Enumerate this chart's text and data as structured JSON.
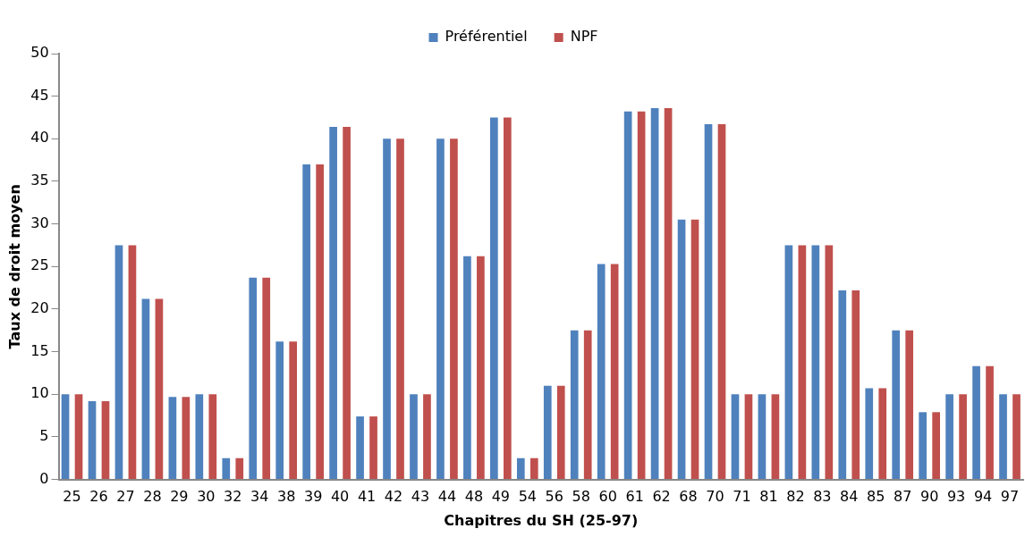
{
  "chart_data": {
    "type": "bar",
    "xlabel": "Chapitres du SH (25-97)",
    "ylabel": "Taux de droit moyen",
    "categories": [
      "25",
      "26",
      "27",
      "28",
      "29",
      "30",
      "32",
      "34",
      "38",
      "39",
      "40",
      "41",
      "42",
      "43",
      "44",
      "48",
      "49",
      "54",
      "56",
      "58",
      "60",
      "61",
      "62",
      "68",
      "70",
      "71",
      "81",
      "82",
      "83",
      "84",
      "85",
      "87",
      "90",
      "93",
      "94",
      "97"
    ],
    "series": [
      {
        "name": "Préférentiel",
        "color": "#4f81bd",
        "values": [
          10,
          9.2,
          27.5,
          21.2,
          9.7,
          10,
          2.5,
          23.7,
          16.2,
          37,
          41.4,
          7.4,
          40,
          10,
          40,
          26.2,
          42.5,
          2.5,
          11,
          17.5,
          25.3,
          43.2,
          43.6,
          30.5,
          41.7,
          10,
          10,
          27.5,
          27.5,
          22.2,
          10.7,
          17.5,
          7.9,
          10,
          13.3,
          10
        ]
      },
      {
        "name": "NPF",
        "color": "#c0504d",
        "values": [
          10,
          9.2,
          27.5,
          21.2,
          9.7,
          10,
          2.5,
          23.7,
          16.2,
          37,
          41.4,
          7.4,
          40,
          10,
          40,
          26.2,
          42.5,
          2.5,
          11,
          17.5,
          25.3,
          43.2,
          43.6,
          30.5,
          41.7,
          10,
          10,
          27.5,
          27.5,
          22.2,
          10.7,
          17.5,
          7.9,
          10,
          13.3,
          10
        ]
      }
    ],
    "ylim": [
      0,
      50
    ],
    "yticks": [
      0,
      5,
      10,
      15,
      20,
      25,
      30,
      35,
      40,
      45,
      50
    ],
    "grid": false,
    "legend": "top"
  }
}
